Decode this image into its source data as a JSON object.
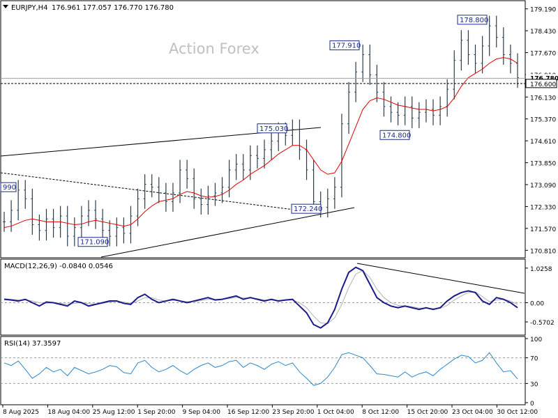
{
  "chart_data": [
    {
      "type": "candlestick",
      "panel": "price",
      "title": "EURJPY,H4",
      "ohlc_text": "176.961 177.057 176.770 176.780",
      "watermark": "Action Forex",
      "y_ticks": [
        "179.190",
        "178.430",
        "177.670",
        "176.910",
        "176.130",
        "175.370",
        "174.610",
        "173.850",
        "173.090",
        "172.330",
        "171.570",
        "170.810"
      ],
      "ylim": [
        170.6,
        179.4
      ],
      "current_price": "176.780",
      "level_label": "176.600",
      "annotations": [
        {
          "label": "990",
          "value": 172.99
        },
        {
          "label": "171.090",
          "value": 171.09
        },
        {
          "label": "175.030",
          "value": 175.03
        },
        {
          "label": "172.240",
          "value": 172.24
        },
        {
          "label": "177.910",
          "value": 177.91
        },
        {
          "label": "174.800",
          "value": 174.8
        },
        {
          "label": "178.800",
          "value": 178.8
        }
      ],
      "series": [
        {
          "name": "price",
          "values": [
            171.8,
            172.2,
            172.9,
            172.6,
            171.7,
            171.5,
            171.9,
            171.6,
            172.0,
            171.3,
            171.6,
            172.0,
            172.2,
            171.9,
            171.5,
            171.3,
            171.6,
            171.4,
            172.0,
            172.6,
            173.1,
            173.0,
            172.8,
            172.5,
            172.8,
            173.6,
            173.3,
            172.6,
            172.4,
            172.7,
            172.8,
            173.0,
            173.6,
            173.8,
            173.6,
            174.1,
            174.0,
            174.3,
            174.6,
            174.9,
            174.8,
            175.0,
            174.3,
            173.6,
            172.5,
            172.3,
            172.6,
            173.0,
            175.2,
            176.3,
            177.0,
            177.6,
            176.9,
            176.3,
            175.8,
            175.6,
            175.5,
            175.8,
            175.4,
            175.6,
            175.7,
            175.5,
            175.8,
            176.4,
            177.4,
            178.1,
            177.6,
            177.3,
            177.9,
            178.6,
            178.2,
            177.6,
            177.3,
            176.8
          ]
        },
        {
          "name": "moving-average",
          "values": [
            171.6,
            171.65,
            171.75,
            171.85,
            171.9,
            171.85,
            171.8,
            171.8,
            171.8,
            171.75,
            171.7,
            171.72,
            171.8,
            171.85,
            171.8,
            171.75,
            171.7,
            171.65,
            171.7,
            171.9,
            172.15,
            172.35,
            172.5,
            172.55,
            172.6,
            172.75,
            172.85,
            172.8,
            172.7,
            172.65,
            172.68,
            172.75,
            172.9,
            173.1,
            173.25,
            173.45,
            173.6,
            173.75,
            173.95,
            174.15,
            174.3,
            174.45,
            174.45,
            174.3,
            173.95,
            173.6,
            173.45,
            173.5,
            173.9,
            174.5,
            175.1,
            175.7,
            176.0,
            176.1,
            176.05,
            175.95,
            175.85,
            175.8,
            175.75,
            175.7,
            175.7,
            175.65,
            175.7,
            175.8,
            176.1,
            176.5,
            176.8,
            176.95,
            177.1,
            177.3,
            177.45,
            177.5,
            177.45,
            177.3
          ]
        }
      ]
    },
    {
      "type": "line",
      "panel": "macd",
      "title": "MACD(12,26,9) -0.0840 0.0546",
      "y_ticks": [
        "1.0258",
        "0.00",
        "-0.5702"
      ],
      "ylim": [
        -0.9,
        1.25
      ],
      "series": [
        {
          "name": "macd",
          "values": [
            0.1,
            0.08,
            0.05,
            0.1,
            0.0,
            -0.1,
            0.02,
            0.0,
            -0.05,
            -0.1,
            0.05,
            0.0,
            -0.1,
            -0.05,
            0.0,
            0.05,
            0.05,
            -0.02,
            -0.05,
            0.15,
            0.25,
            0.1,
            0.0,
            0.05,
            0.1,
            0.05,
            0.0,
            0.05,
            0.1,
            0.15,
            0.08,
            0.1,
            0.15,
            0.2,
            0.1,
            0.15,
            0.1,
            0.05,
            0.1,
            0.05,
            0.08,
            0.1,
            -0.1,
            -0.3,
            -0.65,
            -0.75,
            -0.6,
            -0.2,
            0.4,
            0.9,
            1.05,
            0.95,
            0.55,
            0.15,
            0.0,
            -0.1,
            -0.15,
            -0.1,
            -0.15,
            -0.2,
            -0.15,
            -0.2,
            -0.15,
            0.05,
            0.2,
            0.3,
            0.35,
            0.3,
            0.05,
            -0.05,
            0.15,
            0.1,
            0.0,
            -0.15
          ]
        },
        {
          "name": "signal",
          "values": [
            0.12,
            0.1,
            0.08,
            0.08,
            0.05,
            0.0,
            -0.02,
            0.0,
            -0.02,
            -0.05,
            -0.02,
            0.0,
            -0.03,
            -0.04,
            -0.02,
            0.02,
            0.04,
            0.02,
            -0.02,
            0.05,
            0.15,
            0.15,
            0.08,
            0.05,
            0.07,
            0.06,
            0.03,
            0.03,
            0.06,
            0.1,
            0.1,
            0.1,
            0.12,
            0.16,
            0.14,
            0.14,
            0.12,
            0.08,
            0.08,
            0.07,
            0.07,
            0.08,
            0.0,
            -0.15,
            -0.4,
            -0.6,
            -0.62,
            -0.45,
            -0.05,
            0.45,
            0.85,
            0.95,
            0.75,
            0.4,
            0.15,
            0.0,
            -0.08,
            -0.1,
            -0.12,
            -0.16,
            -0.16,
            -0.18,
            -0.17,
            -0.08,
            0.08,
            0.2,
            0.3,
            0.32,
            0.18,
            0.03,
            0.08,
            0.1,
            0.05,
            -0.05
          ]
        }
      ]
    },
    {
      "type": "line",
      "panel": "rsi",
      "title": "RSI(14) 37.3597",
      "y_ticks": [
        "100",
        "70",
        "30",
        "0"
      ],
      "ylim": [
        0,
        100
      ],
      "levels": [
        70,
        30
      ],
      "series": [
        {
          "name": "rsi",
          "values": [
            62,
            58,
            65,
            52,
            38,
            45,
            55,
            48,
            52,
            42,
            55,
            50,
            45,
            48,
            52,
            58,
            56,
            47,
            45,
            62,
            66,
            55,
            48,
            52,
            58,
            50,
            44,
            52,
            58,
            62,
            55,
            58,
            64,
            66,
            55,
            62,
            58,
            52,
            60,
            64,
            58,
            62,
            48,
            38,
            27,
            30,
            40,
            55,
            75,
            78,
            74,
            70,
            58,
            45,
            44,
            42,
            40,
            48,
            40,
            45,
            48,
            42,
            52,
            60,
            68,
            74,
            72,
            62,
            66,
            78,
            62,
            48,
            50,
            37
          ]
        }
      ]
    },
    {
      "type": "axis",
      "panel": "time",
      "x_ticks": [
        "8 Aug 2025",
        "18 Aug 04:00",
        "25 Aug 12:00",
        "1 Sep 20:00",
        "9 Sep 04:00",
        "16 Sep 12:00",
        "23 Sep 20:00",
        "1 Oct 04:00",
        "8 Oct 12:00",
        "15 Oct 20:00",
        "23 Oct 04:00",
        "30 Oct 12:00"
      ]
    }
  ]
}
